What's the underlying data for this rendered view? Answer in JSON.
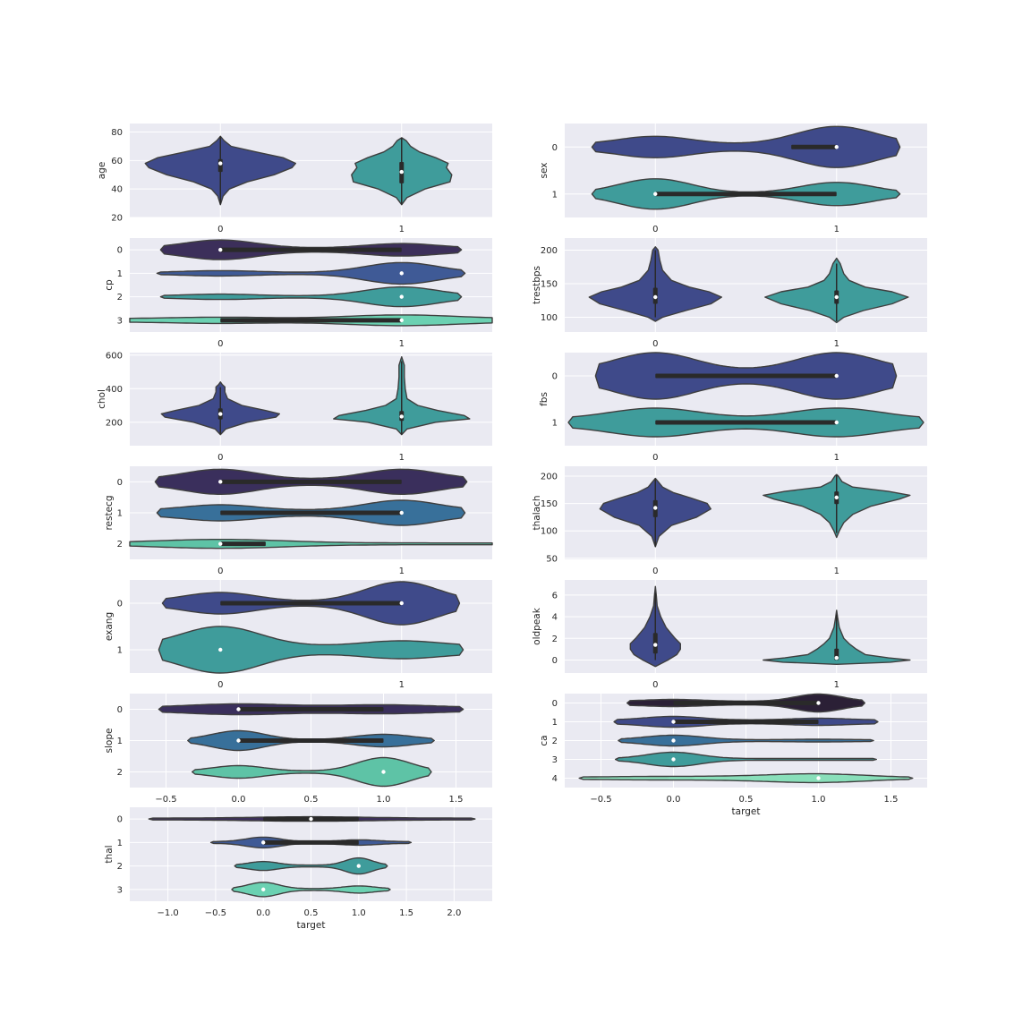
{
  "chart_data": [
    {
      "type": "violin",
      "orient": "v",
      "ylabel": "age",
      "xticks": [
        "0",
        "1"
      ],
      "yticks": [
        "20",
        "40",
        "60",
        "80"
      ],
      "ylim": [
        20,
        86
      ],
      "groups": [
        {
          "category": "0",
          "median": 58,
          "q1": 52,
          "q3": 61,
          "min": 29,
          "max": 77
        },
        {
          "category": "1",
          "median": 52,
          "q1": 44,
          "q3": 59,
          "min": 29,
          "max": 76
        }
      ]
    },
    {
      "type": "violin",
      "orient": "h",
      "ylabel": "sex",
      "yticks": [
        "0",
        "1"
      ],
      "xticks": [
        "0",
        "1"
      ],
      "groups": [
        {
          "category": "0",
          "median": 1,
          "q1": 0.75,
          "q3": 1
        },
        {
          "category": "1",
          "median": 0,
          "q1": 0,
          "q3": 1
        }
      ]
    },
    {
      "type": "violin",
      "orient": "h",
      "ylabel": "cp",
      "yticks": [
        "0",
        "1",
        "2",
        "3"
      ],
      "xticks": [
        "0",
        "1"
      ],
      "groups": [
        {
          "category": "0",
          "median": 0,
          "q1": 0,
          "q3": 1
        },
        {
          "category": "1",
          "median": 1,
          "q1": 1,
          "q3": 1
        },
        {
          "category": "2",
          "median": 1,
          "q1": 1,
          "q3": 1
        },
        {
          "category": "3",
          "median": 1,
          "q1": 0,
          "q3": 1
        }
      ]
    },
    {
      "type": "violin",
      "orient": "v",
      "ylabel": "trestbps",
      "xticks": [
        "0",
        "1"
      ],
      "yticks": [
        "100",
        "150",
        "200"
      ],
      "ylim": [
        78,
        218
      ],
      "groups": [
        {
          "category": "0",
          "median": 130,
          "q1": 120,
          "q3": 144,
          "min": 100,
          "max": 200
        },
        {
          "category": "1",
          "median": 130,
          "q1": 120,
          "q3": 140,
          "min": 94,
          "max": 180
        }
      ]
    },
    {
      "type": "violin",
      "orient": "v",
      "ylabel": "chol",
      "xticks": [
        "0",
        "1"
      ],
      "yticks": [
        "200",
        "400",
        "600"
      ],
      "ylim": [
        60,
        615
      ],
      "groups": [
        {
          "category": "0",
          "median": 249,
          "q1": 217,
          "q3": 283,
          "min": 131,
          "max": 409
        },
        {
          "category": "1",
          "median": 234,
          "q1": 208,
          "q3": 267,
          "min": 126,
          "max": 564
        }
      ]
    },
    {
      "type": "violin",
      "orient": "h",
      "ylabel": "fbs",
      "yticks": [
        "0",
        "1"
      ],
      "xticks": [
        "0",
        "1"
      ],
      "groups": [
        {
          "category": "0",
          "median": 1,
          "q1": 0,
          "q3": 1
        },
        {
          "category": "1",
          "median": 1,
          "q1": 0,
          "q3": 1
        }
      ]
    },
    {
      "type": "violin",
      "orient": "h",
      "ylabel": "restecg",
      "yticks": [
        "0",
        "1",
        "2"
      ],
      "xticks": [
        "0",
        "1"
      ],
      "groups": [
        {
          "category": "0",
          "median": 0,
          "q1": 0,
          "q3": 1
        },
        {
          "category": "1",
          "median": 1,
          "q1": 0,
          "q3": 1
        },
        {
          "category": "2",
          "median": 0,
          "q1": 0,
          "q3": 0.25
        }
      ]
    },
    {
      "type": "violin",
      "orient": "v",
      "ylabel": "thalach",
      "xticks": [
        "0",
        "1"
      ],
      "yticks": [
        "50",
        "100",
        "150",
        "200"
      ],
      "ylim": [
        48,
        218
      ],
      "groups": [
        {
          "category": "0",
          "median": 142,
          "q1": 125,
          "q3": 156,
          "min": 71,
          "max": 195
        },
        {
          "category": "1",
          "median": 161,
          "q1": 149,
          "q3": 172,
          "min": 96,
          "max": 202
        }
      ]
    },
    {
      "type": "violin",
      "orient": "h",
      "ylabel": "exang",
      "yticks": [
        "0",
        "1"
      ],
      "xticks": [
        "0",
        "1"
      ],
      "groups": [
        {
          "category": "0",
          "median": 1,
          "q1": 0,
          "q3": 1
        },
        {
          "category": "1",
          "median": 0,
          "q1": 0,
          "q3": 0
        }
      ]
    },
    {
      "type": "violin",
      "orient": "v",
      "ylabel": "oldpeak",
      "xticks": [
        "0",
        "1"
      ],
      "yticks": [
        "0",
        "2",
        "4",
        "6"
      ],
      "ylim": [
        -1.2,
        7.4
      ],
      "groups": [
        {
          "category": "0",
          "median": 1.4,
          "q1": 0.6,
          "q3": 2.5,
          "min": 0,
          "max": 6.2
        },
        {
          "category": "1",
          "median": 0.2,
          "q1": 0,
          "q3": 1.05,
          "min": 0,
          "max": 4.2
        }
      ]
    },
    {
      "type": "violin",
      "orient": "h",
      "ylabel": "slope",
      "xlabel": "",
      "yticks": [
        "0",
        "1",
        "2"
      ],
      "xticks": [
        "−0.5",
        "0.0",
        "0.5",
        "1.0",
        "1.5"
      ],
      "xlim": [
        -0.75,
        1.75
      ],
      "groups": [
        {
          "category": "0",
          "median": 0,
          "q1": 0,
          "q3": 1
        },
        {
          "category": "1",
          "median": 0,
          "q1": 0,
          "q3": 1
        },
        {
          "category": "2",
          "median": 1,
          "q1": 1,
          "q3": 1
        }
      ]
    },
    {
      "type": "violin",
      "orient": "h",
      "ylabel": "ca",
      "xlabel": "target",
      "yticks": [
        "0",
        "1",
        "2",
        "3",
        "4"
      ],
      "xticks": [
        "−0.5",
        "0.0",
        "0.5",
        "1.0",
        "1.5"
      ],
      "xlim": [
        -0.75,
        1.75
      ],
      "groups": [
        {
          "category": "0",
          "median": 1,
          "q1": 0,
          "q3": 1
        },
        {
          "category": "1",
          "median": 0,
          "q1": 0,
          "q3": 1
        },
        {
          "category": "2",
          "median": 0,
          "q1": 0,
          "q3": 0
        },
        {
          "category": "3",
          "median": 0,
          "q1": 0,
          "q3": 0
        },
        {
          "category": "4",
          "median": 1,
          "q1": 1,
          "q3": 1
        }
      ]
    },
    {
      "type": "violin",
      "orient": "h",
      "ylabel": "thal",
      "xlabel": "target",
      "yticks": [
        "0",
        "1",
        "2",
        "3"
      ],
      "xticks": [
        "−1.0",
        "−0.5",
        "0.0",
        "0.5",
        "1.0",
        "1.5",
        "2.0"
      ],
      "xlim": [
        -1.4,
        2.4
      ],
      "groups": [
        {
          "category": "0",
          "median": 0.5,
          "q1": 0,
          "q3": 1
        },
        {
          "category": "1",
          "median": 0,
          "q1": 0,
          "q3": 1
        },
        {
          "category": "2",
          "median": 1,
          "q1": 1,
          "q3": 1
        },
        {
          "category": "3",
          "median": 0,
          "q1": 0,
          "q3": 0
        }
      ]
    }
  ],
  "colors": {
    "background": "#eaeaf2",
    "grid": "#ffffff",
    "outline": "#3f3f3f",
    "palette_2": [
      "#3f4a8a",
      "#3f9c9b"
    ],
    "palette_3": [
      "#3a2f5c",
      "#38709a",
      "#5ec3a6"
    ],
    "palette_4": [
      "#3c2f5a",
      "#3f5a96",
      "#3f9c9b",
      "#6bd1b2"
    ],
    "palette_5": [
      "#2b2036",
      "#3f4a8a",
      "#38709a",
      "#3f9c9b",
      "#89dfba"
    ]
  }
}
